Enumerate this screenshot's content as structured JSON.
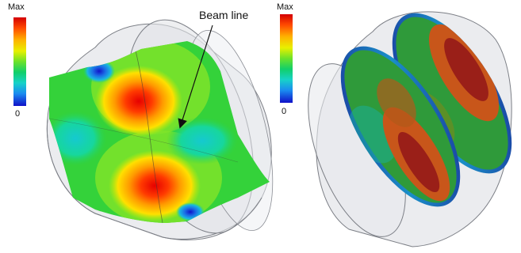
{
  "left_figure": {
    "colorbar": {
      "max_label": "Max",
      "min_label": "0"
    },
    "annotation": "Beam line"
  },
  "right_figure": {
    "colorbar": {
      "max_label": "Max",
      "min_label": "0"
    }
  },
  "colors": {
    "scale": [
      "#d40000",
      "#ff3b00",
      "#ff8a00",
      "#ffd200",
      "#c8f000",
      "#5be22a",
      "#11cf5f",
      "#15d6b4",
      "#1aa6f0",
      "#1b55e6",
      "#1212c8"
    ],
    "cavity_shell": "#e3e4e8",
    "cavity_edge": "#7c7f86"
  }
}
